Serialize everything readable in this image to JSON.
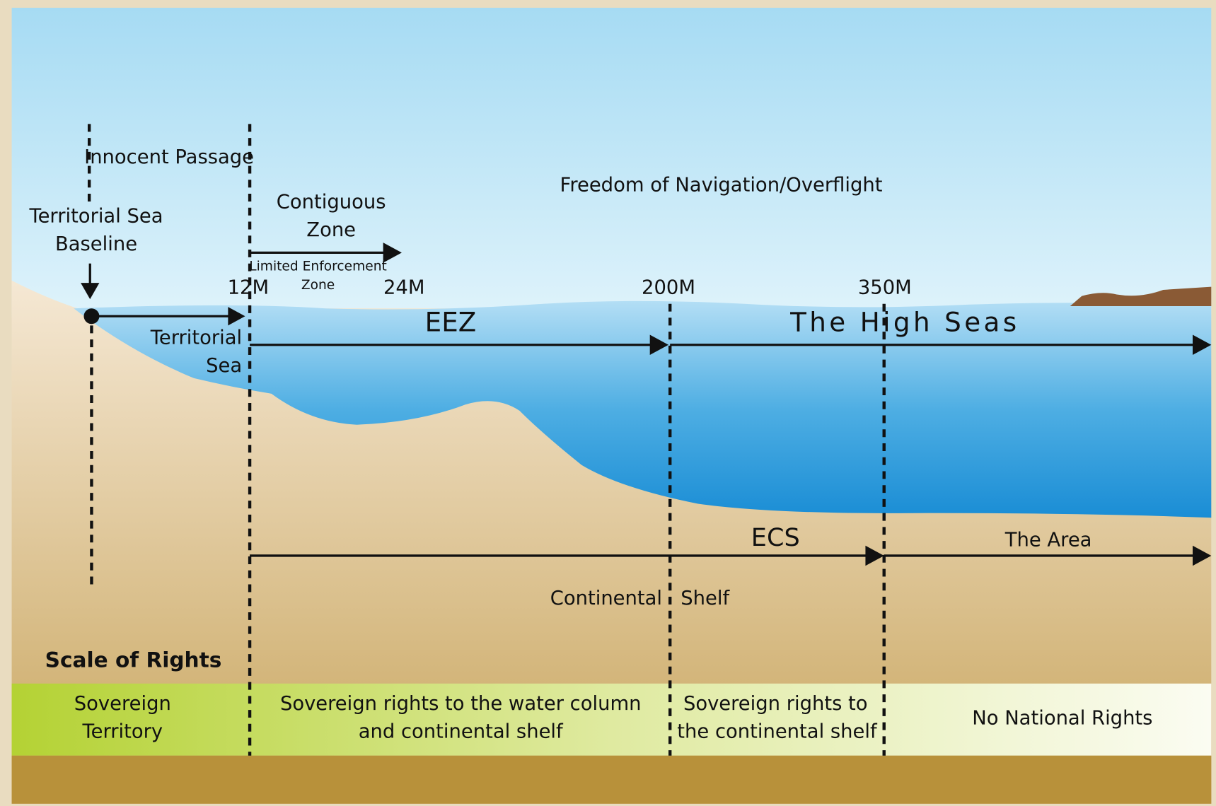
{
  "labels": {
    "innocent_passage": "Innocent Passage",
    "territorial_sea_baseline": [
      "Territorial Sea",
      "Baseline"
    ],
    "contiguous_zone": [
      "Contiguous",
      "Zone"
    ],
    "limited_enforcement_zone": [
      "Limited Enforcement",
      "Zone"
    ],
    "freedom": "Freedom of Navigation/Overflight"
  },
  "distances": [
    "12M",
    "24M",
    "200M",
    "350M"
  ],
  "zones": {
    "territorial_sea": [
      "Territorial",
      "Sea"
    ],
    "eez": "EEZ",
    "high_seas": "The High Seas",
    "ecs": "ECS",
    "the_area": "The Area",
    "continental_shelf": "Continental Shelf"
  },
  "scale_of_rights": {
    "title": "Scale of Rights",
    "cells": [
      [
        "Sovereign",
        "Territory"
      ],
      [
        "Sovereign rights to the water column",
        "and continental shelf"
      ],
      [
        "Sovereign rights to",
        "the continental shelf"
      ],
      [
        "No National Rights"
      ]
    ]
  }
}
